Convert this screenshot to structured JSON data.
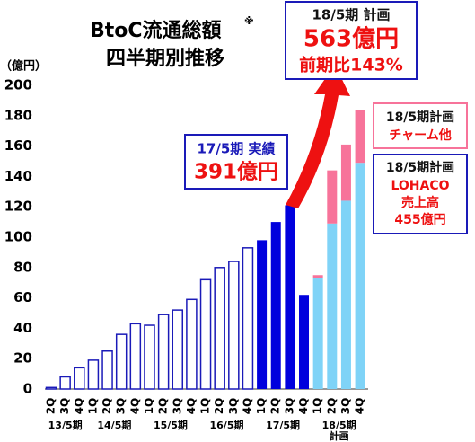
{
  "chart_data": {
    "type": "bar",
    "stacked": true,
    "title": "BtoC流通総額",
    "title_mark": "※",
    "subtitle": "四半期別推移",
    "y_unit": "（億円）",
    "categories": [
      "2Q",
      "3Q",
      "4Q",
      "1Q",
      "2Q",
      "3Q",
      "4Q",
      "1Q",
      "2Q",
      "3Q",
      "4Q",
      "1Q",
      "2Q",
      "3Q",
      "4Q",
      "1Q",
      "2Q",
      "3Q",
      "4Q",
      "1Q",
      "2Q",
      "3Q",
      "4Q"
    ],
    "groups": [
      "13/5期",
      "14/5期",
      "15/5期",
      "16/5期",
      "17/5期",
      "18/5期"
    ],
    "group_note": "計画",
    "series": [
      {
        "color": "#ffffff",
        "stroke": "#1a1ab8",
        "values": [
          1,
          8,
          14,
          19,
          25,
          36,
          43,
          42,
          49,
          52,
          59,
          72,
          80,
          84,
          93,
          null,
          null,
          null,
          null,
          null,
          null,
          null,
          null
        ]
      },
      {
        "color": "#0000dd",
        "values": [
          null,
          null,
          null,
          null,
          null,
          null,
          null,
          null,
          null,
          null,
          null,
          null,
          null,
          null,
          null,
          98,
          110,
          121,
          62,
          null,
          null,
          null,
          null
        ]
      },
      {
        "color": "#7fd3f7",
        "values": [
          null,
          null,
          null,
          null,
          null,
          null,
          null,
          null,
          null,
          null,
          null,
          null,
          null,
          null,
          null,
          null,
          null,
          null,
          null,
          73,
          109,
          124,
          149
        ]
      },
      {
        "color": "#f7739a",
        "values": [
          null,
          null,
          null,
          null,
          null,
          null,
          null,
          null,
          null,
          null,
          null,
          null,
          null,
          null,
          null,
          null,
          null,
          null,
          null,
          2,
          35,
          37,
          35
        ]
      }
    ],
    "ylim": [
      0,
      200
    ],
    "yticks": [
      0,
      20,
      40,
      60,
      80,
      100,
      120,
      140,
      160,
      180,
      200
    ],
    "annotations": {
      "actual": {
        "lines": [
          "17/5期 実績",
          "391億円"
        ]
      },
      "plan_total": {
        "lines": [
          "18/5期 計画",
          "563億円",
          "前期比143%"
        ]
      },
      "charm": {
        "lines": [
          "18/5期計画",
          "チャーム他"
        ]
      },
      "lohaco": {
        "lines": [
          "18/5期計画",
          "LOHACO",
          "売上高",
          "455億円"
        ]
      }
    }
  }
}
